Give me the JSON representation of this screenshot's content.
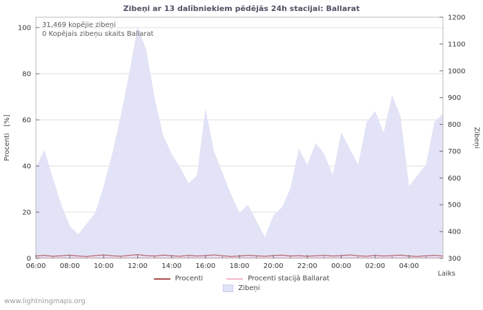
{
  "title": "Zibeņi ar 13 dalībniekiem pēdējās 24h stacijai: Ballarat",
  "annotations": {
    "total": "31,469 kopējie zibeņi",
    "station": "0 Kopējais zibeņu skaits Ballarat"
  },
  "watermark": "www.lightningmaps.org",
  "axes": {
    "left_label": "Procenti   [%]",
    "right_label": "Zibeņi",
    "x_label": "Laiks",
    "left_ticks": [
      0,
      20,
      40,
      60,
      80,
      100
    ],
    "right_ticks": [
      300,
      400,
      500,
      600,
      700,
      800,
      900,
      1000,
      1100,
      1200
    ],
    "x_ticks": [
      "06:00",
      "08:00",
      "10:00",
      "12:00",
      "14:00",
      "16:00",
      "18:00",
      "20:00",
      "22:00",
      "00:00",
      "02:00",
      "04:00"
    ]
  },
  "legend": [
    {
      "label": "Procenti",
      "type": "line",
      "color": "#a94a4a"
    },
    {
      "label": "Procenti stacijā Ballarat",
      "type": "line",
      "color": "#f2b6c6"
    },
    {
      "label": "Zibeņi",
      "type": "area",
      "color": "#e3e3f7"
    }
  ],
  "chart_data": {
    "type": "area",
    "title": "Zibeņi ar 13 dalībniekiem pēdējās 24h stacijai: Ballarat",
    "xlabel": "Laiks",
    "ylabel_left": "Procenti [%]",
    "ylabel_right": "Zibeņi",
    "x_start": "06:00",
    "x_step_hours": 0.5,
    "left_range": [
      0,
      100
    ],
    "right_range": [
      300,
      1200
    ],
    "grid": true,
    "legend_position": "bottom",
    "series": [
      {
        "name": "Zibeņi",
        "axis": "right",
        "type": "area",
        "color": "#e3e3f7",
        "values": [
          640,
          705,
          600,
          500,
          420,
          390,
          430,
          470,
          570,
          690,
          830,
          990,
          1165,
          1080,
          900,
          760,
          690,
          640,
          580,
          610,
          860,
          700,
          620,
          540,
          470,
          500,
          440,
          380,
          460,
          490,
          560,
          710,
          650,
          730,
          690,
          610,
          770,
          710,
          650,
          810,
          850,
          770,
          910,
          830,
          570,
          610,
          650,
          810,
          840
        ]
      },
      {
        "name": "Procenti",
        "axis": "left",
        "type": "line",
        "color": "#a94a4a",
        "values": [
          1.0,
          1.3,
          0.9,
          1.1,
          1.4,
          1.0,
          0.8,
          1.2,
          1.5,
          1.1,
          0.9,
          1.3,
          1.6,
          1.2,
          1.0,
          1.4,
          1.1,
          0.9,
          1.3,
          1.0,
          1.2,
          1.5,
          1.1,
          0.8,
          1.0,
          1.3,
          1.1,
          0.9,
          1.2,
          1.4,
          1.0,
          1.2,
          0.9,
          1.1,
          1.3,
          1.0,
          1.2,
          1.5,
          1.1,
          0.9,
          1.3,
          1.0,
          1.2,
          1.4,
          1.0,
          0.8,
          1.1,
          1.3,
          1.0
        ]
      },
      {
        "name": "Procenti stacijā Ballarat",
        "axis": "left",
        "type": "line",
        "color": "#f2b6c6",
        "values": [
          0.4,
          0.4,
          0.4,
          0.4,
          0.4,
          0.4,
          0.4,
          0.4,
          0.4,
          0.4,
          0.4,
          0.4,
          0.4,
          0.4,
          0.4,
          0.4,
          0.4,
          0.4,
          0.4,
          0.4,
          0.4,
          0.4,
          0.4,
          0.4,
          0.4,
          0.4,
          0.4,
          0.4,
          0.4,
          0.4,
          0.4,
          0.4,
          0.4,
          0.4,
          0.4,
          0.4,
          0.4,
          0.4,
          0.4,
          0.4,
          0.4,
          0.4,
          0.4,
          0.4,
          0.4,
          0.4,
          0.4,
          0.4,
          0.4
        ]
      }
    ]
  }
}
